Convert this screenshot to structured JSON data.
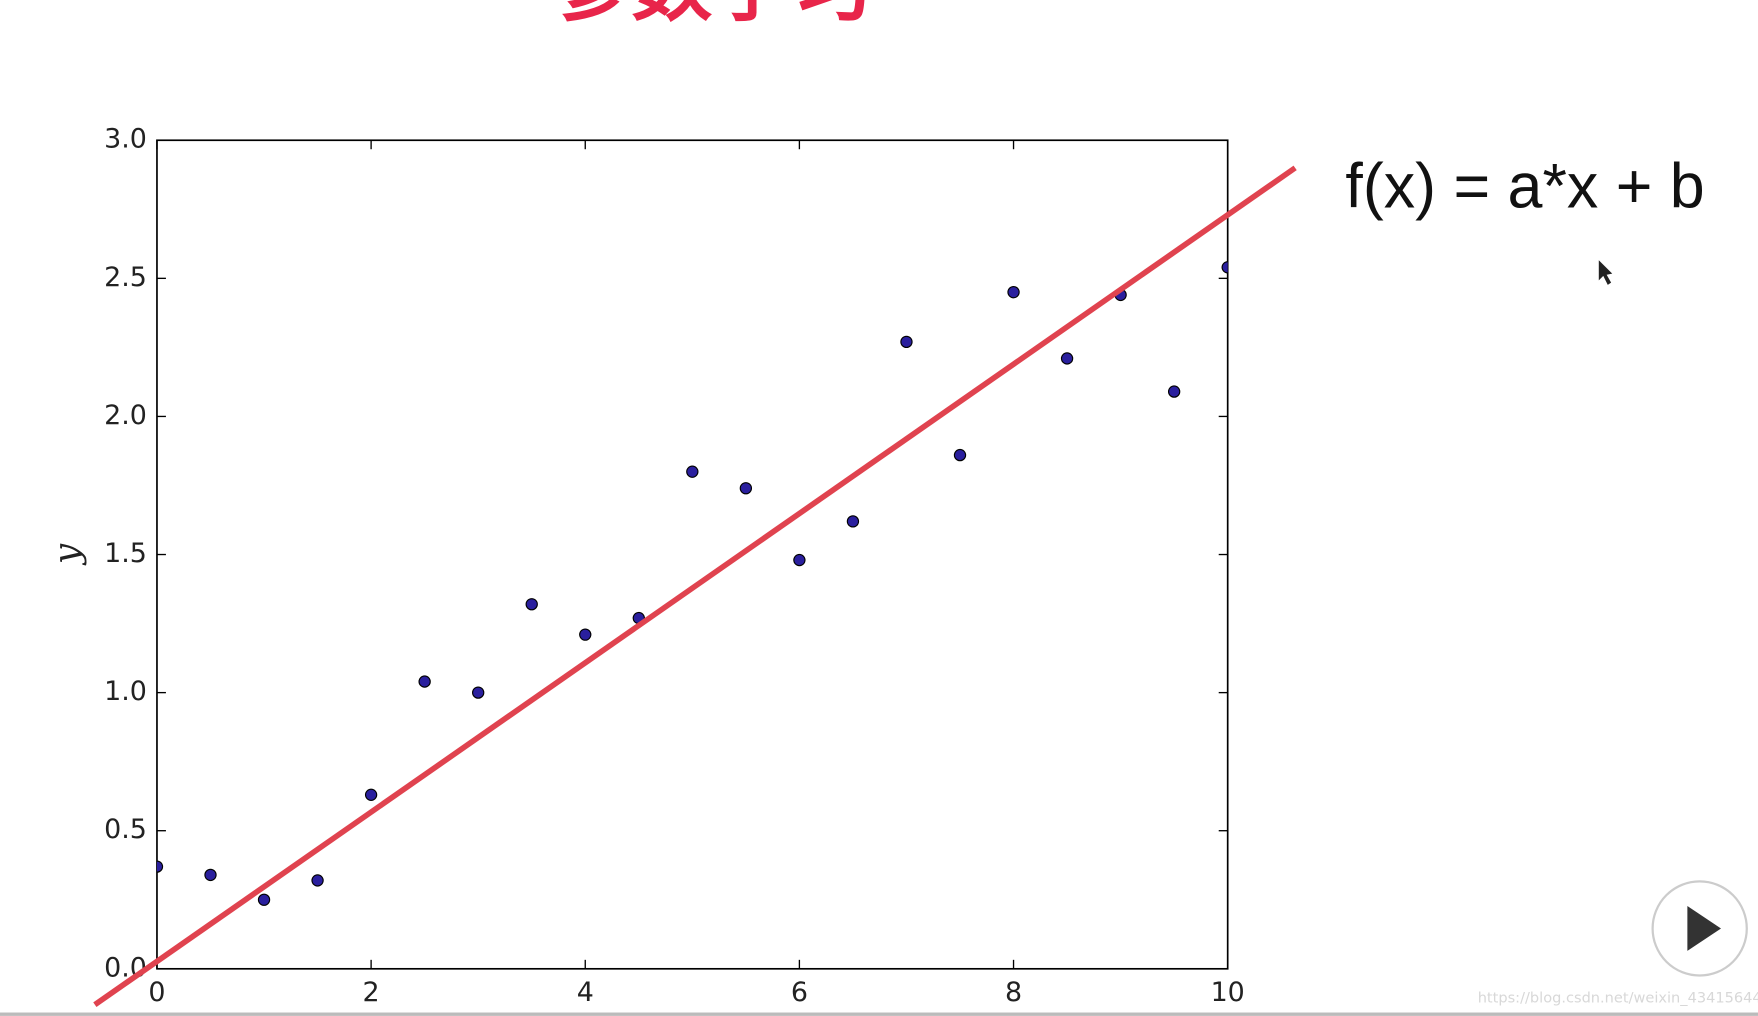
{
  "header": {
    "title": "参数学习"
  },
  "formula": "f(x) = a*x + b",
  "watermark": "https://blog.csdn.net/weixin_43415644",
  "chart_data": {
    "type": "scatter",
    "ylabel": "y",
    "xlim": [
      0,
      10
    ],
    "ylim": [
      0,
      3
    ],
    "xticks": [
      0,
      2,
      4,
      6,
      8,
      10
    ],
    "yticks": [
      {
        "value": 0,
        "label": "0.0"
      },
      0.5,
      {
        "value": 1,
        "label": "1.0"
      },
      1.5,
      {
        "value": 2,
        "label": "2.0"
      },
      2.5,
      {
        "value": 3,
        "label": "3.0"
      }
    ],
    "series": [
      {
        "type": "scatter",
        "color": "#2a1f9e",
        "x": [
          0,
          0.5,
          1,
          1.5,
          2,
          2.5,
          3,
          3.5,
          4,
          4.5,
          5,
          5.5,
          6,
          6.5,
          7,
          7.5,
          8,
          8.5,
          9,
          9.5,
          10
        ],
        "values": [
          0.37,
          0.34,
          0.25,
          0.32,
          0.63,
          1.04,
          1.0,
          1.32,
          1.21,
          1.27,
          1.8,
          1.74,
          1.48,
          1.62,
          2.27,
          1.86,
          2.45,
          2.21,
          2.44,
          2.09,
          2.54
        ]
      },
      {
        "type": "line",
        "color": "#e0434f",
        "x": [
          -0.58,
          10.63
        ],
        "values": [
          -0.13,
          2.9
        ]
      }
    ]
  }
}
